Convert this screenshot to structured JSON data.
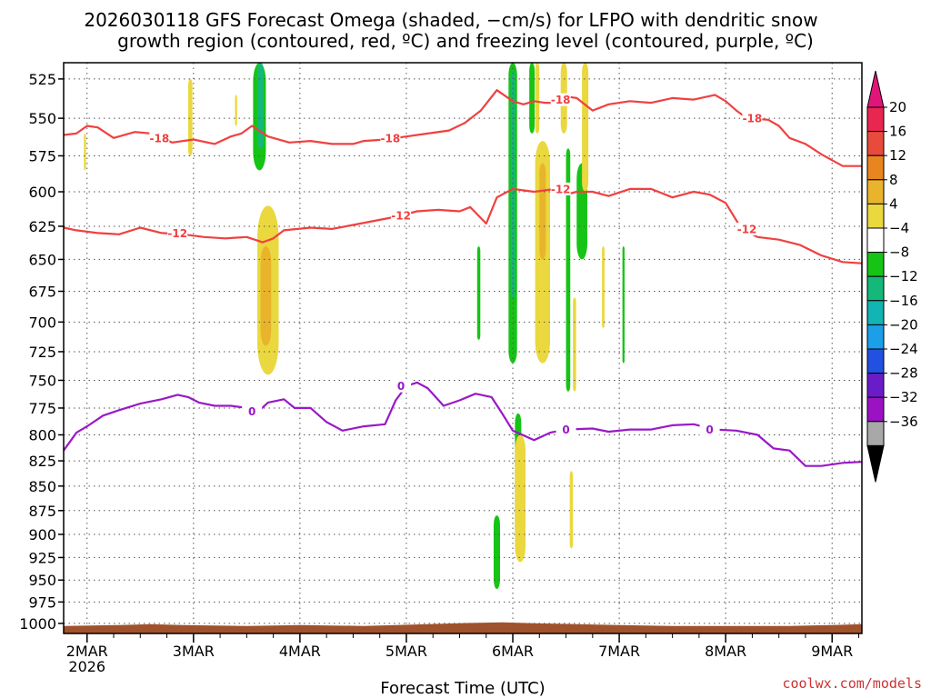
{
  "chart_data": {
    "type": "time-height cross section",
    "title_line1": "2026030118 GFS Forecast Omega (shaded, −cm/s) for LFPO with dendritic snow",
    "title_line2": "growth region (contoured, red, ºC) and freezing level (contoured, purple, ºC)",
    "xlabel": "Forecast Time (UTC)",
    "credit": "coolwx.com/models",
    "x_ticks": [
      {
        "day": 0,
        "label": "2MAR",
        "sub": "2026"
      },
      {
        "day": 1,
        "label": "3MAR"
      },
      {
        "day": 2,
        "label": "4MAR"
      },
      {
        "day": 3,
        "label": "5MAR"
      },
      {
        "day": 4,
        "label": "6MAR"
      },
      {
        "day": 5,
        "label": "7MAR"
      },
      {
        "day": 6,
        "label": "8MAR"
      },
      {
        "day": 7,
        "label": "9MAR"
      }
    ],
    "xlim": [
      -0.22,
      7.28
    ],
    "y_ticks": [
      525,
      550,
      575,
      600,
      625,
      650,
      675,
      700,
      725,
      750,
      775,
      800,
      825,
      850,
      875,
      900,
      925,
      950,
      975,
      1000
    ],
    "ylim": [
      515,
      1012
    ],
    "ylog": true,
    "grid": true,
    "colorbar": {
      "labels": [
        "20",
        "16",
        "12",
        "8",
        "4",
        "−4",
        "−8",
        "−12",
        "−16",
        "−20",
        "−24",
        "−28",
        "−32",
        "−36"
      ],
      "colors": [
        "#e8264f",
        "#e84a3c",
        "#e8851e",
        "#e8b42c",
        "#ead83e",
        "#ffffff",
        "#16c416",
        "#14b87a",
        "#12b4b4",
        "#1a9fe8",
        "#2250e0",
        "#6a1cc8",
        "#9b11c4",
        "#a8a8a8"
      ],
      "top_color": "#e0157a",
      "bottom_color": "#000000"
    },
    "contours_dgz": [
      {
        "label": "-18",
        "color": "#f04040",
        "points": [
          [
            -0.22,
            561
          ],
          [
            -0.1,
            560
          ],
          [
            0.0,
            555
          ],
          [
            0.1,
            556
          ],
          [
            0.25,
            563
          ],
          [
            0.45,
            559
          ],
          [
            0.6,
            560
          ],
          [
            0.8,
            566
          ],
          [
            1.0,
            564
          ],
          [
            1.2,
            567
          ],
          [
            1.35,
            562
          ],
          [
            1.45,
            560
          ],
          [
            1.55,
            555
          ],
          [
            1.7,
            562
          ],
          [
            1.9,
            566
          ],
          [
            2.1,
            565
          ],
          [
            2.3,
            567
          ],
          [
            2.5,
            567
          ],
          [
            2.6,
            565
          ],
          [
            2.8,
            564
          ],
          [
            3.0,
            562
          ],
          [
            3.2,
            560
          ],
          [
            3.4,
            558
          ],
          [
            3.55,
            553
          ],
          [
            3.7,
            545
          ],
          [
            3.85,
            532
          ],
          [
            4.0,
            539
          ],
          [
            4.1,
            541
          ],
          [
            4.2,
            539
          ],
          [
            4.3,
            540
          ],
          [
            4.4,
            540
          ],
          [
            4.5,
            536
          ],
          [
            4.6,
            537
          ],
          [
            4.75,
            545
          ],
          [
            4.9,
            541
          ],
          [
            5.1,
            539
          ],
          [
            5.3,
            540
          ],
          [
            5.5,
            537
          ],
          [
            5.7,
            538
          ],
          [
            5.9,
            535
          ],
          [
            6.0,
            539
          ],
          [
            6.1,
            545
          ],
          [
            6.2,
            550
          ],
          [
            6.4,
            551
          ],
          [
            6.5,
            555
          ],
          [
            6.6,
            563
          ],
          [
            6.75,
            567
          ],
          [
            6.9,
            574
          ],
          [
            7.1,
            582
          ],
          [
            7.28,
            582
          ]
        ]
      },
      {
        "label": "-12",
        "color": "#f04040",
        "points": [
          [
            -0.22,
            626
          ],
          [
            -0.1,
            628
          ],
          [
            0.1,
            630
          ],
          [
            0.3,
            631
          ],
          [
            0.5,
            626
          ],
          [
            0.7,
            630
          ],
          [
            0.9,
            631
          ],
          [
            1.1,
            633
          ],
          [
            1.3,
            634
          ],
          [
            1.5,
            633
          ],
          [
            1.65,
            637
          ],
          [
            1.75,
            634
          ],
          [
            1.85,
            628
          ],
          [
            2.1,
            626
          ],
          [
            2.3,
            627
          ],
          [
            2.5,
            624
          ],
          [
            2.7,
            621
          ],
          [
            2.9,
            618
          ],
          [
            3.1,
            614
          ],
          [
            3.3,
            613
          ],
          [
            3.5,
            614
          ],
          [
            3.6,
            611
          ],
          [
            3.75,
            623
          ],
          [
            3.85,
            604
          ],
          [
            4.0,
            598
          ],
          [
            4.2,
            600
          ],
          [
            4.4,
            598
          ],
          [
            4.5,
            602
          ],
          [
            4.6,
            600
          ],
          [
            4.75,
            600
          ],
          [
            4.9,
            603
          ],
          [
            5.1,
            598
          ],
          [
            5.3,
            598
          ],
          [
            5.5,
            604
          ],
          [
            5.7,
            600
          ],
          [
            5.85,
            602
          ],
          [
            6.0,
            608
          ],
          [
            6.15,
            627
          ],
          [
            6.3,
            633
          ],
          [
            6.5,
            635
          ],
          [
            6.7,
            639
          ],
          [
            6.9,
            647
          ],
          [
            7.1,
            652
          ],
          [
            7.28,
            653
          ]
        ]
      },
      {
        "label": "0",
        "color": "#9a18c8",
        "points": [
          [
            -0.22,
            815
          ],
          [
            -0.15,
            805
          ],
          [
            -0.1,
            798
          ],
          [
            0.0,
            792
          ],
          [
            0.15,
            782
          ],
          [
            0.3,
            777
          ],
          [
            0.5,
            771
          ],
          [
            0.7,
            767
          ],
          [
            0.85,
            763
          ],
          [
            0.95,
            765
          ],
          [
            1.05,
            770
          ],
          [
            1.2,
            773
          ],
          [
            1.35,
            773
          ],
          [
            1.5,
            775
          ],
          [
            1.6,
            779
          ],
          [
            1.7,
            770
          ],
          [
            1.85,
            767
          ],
          [
            1.95,
            775
          ],
          [
            2.1,
            775
          ],
          [
            2.25,
            788
          ],
          [
            2.4,
            796
          ],
          [
            2.6,
            792
          ],
          [
            2.8,
            790
          ],
          [
            2.9,
            768
          ],
          [
            3.0,
            755
          ],
          [
            3.1,
            752
          ],
          [
            3.2,
            757
          ],
          [
            3.35,
            773
          ],
          [
            3.5,
            768
          ],
          [
            3.65,
            762
          ],
          [
            3.8,
            765
          ],
          [
            3.9,
            780
          ],
          [
            4.0,
            796
          ],
          [
            4.2,
            805
          ],
          [
            4.35,
            798
          ],
          [
            4.5,
            795
          ],
          [
            4.75,
            794
          ],
          [
            4.9,
            797
          ],
          [
            5.1,
            795
          ],
          [
            5.3,
            795
          ],
          [
            5.5,
            791
          ],
          [
            5.7,
            790
          ],
          [
            5.9,
            795
          ],
          [
            6.1,
            796
          ],
          [
            6.3,
            800
          ],
          [
            6.45,
            813
          ],
          [
            6.6,
            815
          ],
          [
            6.75,
            830
          ],
          [
            6.9,
            830
          ],
          [
            7.1,
            827
          ],
          [
            7.28,
            826
          ]
        ]
      }
    ],
    "contour_label_positions": [
      {
        "label": "-18",
        "day": 0.68,
        "p": 563,
        "color": "#f04040"
      },
      {
        "label": "-18",
        "day": 2.85,
        "p": 563,
        "color": "#f04040"
      },
      {
        "label": "-18",
        "day": 4.45,
        "p": 538,
        "color": "#f04040"
      },
      {
        "label": "-18",
        "day": 6.25,
        "p": 550,
        "color": "#f04040"
      },
      {
        "label": "-12",
        "day": 0.85,
        "p": 630,
        "color": "#f04040"
      },
      {
        "label": "-12",
        "day": 2.95,
        "p": 617,
        "color": "#f04040"
      },
      {
        "label": "-12",
        "day": 4.45,
        "p": 598,
        "color": "#f04040"
      },
      {
        "label": "-12",
        "day": 6.2,
        "p": 627,
        "color": "#f04040"
      },
      {
        "label": "0",
        "day": 1.55,
        "p": 778,
        "color": "#9a18c8"
      },
      {
        "label": "0",
        "day": 2.95,
        "p": 755,
        "color": "#9a18c8"
      },
      {
        "label": "0",
        "day": 4.5,
        "p": 795,
        "color": "#9a18c8"
      },
      {
        "label": "0",
        "day": 5.85,
        "p": 795,
        "color": "#9a18c8"
      }
    ],
    "shaded_features": [
      {
        "color": "#16c416",
        "day_center": 1.62,
        "half_width": 0.06,
        "p_top": 515,
        "p_bottom": 585
      },
      {
        "color": "#14b87a",
        "day_center": 1.63,
        "half_width": 0.03,
        "p_top": 515,
        "p_bottom": 570
      },
      {
        "color": "#ead83e",
        "day_center": 1.7,
        "half_width": 0.1,
        "p_top": 610,
        "p_bottom": 745
      },
      {
        "color": "#e8b42c",
        "day_center": 1.68,
        "half_width": 0.05,
        "p_top": 640,
        "p_bottom": 720
      },
      {
        "color": "#ead83e",
        "day_center": 0.97,
        "half_width": 0.02,
        "p_top": 525,
        "p_bottom": 575
      },
      {
        "color": "#ead83e",
        "day_center": 1.4,
        "half_width": 0.01,
        "p_top": 535,
        "p_bottom": 555
      },
      {
        "color": "#ead83e",
        "day_center": -0.02,
        "half_width": 0.01,
        "p_top": 560,
        "p_bottom": 585
      },
      {
        "color": "#16c416",
        "day_center": 4.0,
        "half_width": 0.04,
        "p_top": 515,
        "p_bottom": 735
      },
      {
        "color": "#14b87a",
        "day_center": 4.0,
        "half_width": 0.02,
        "p_top": 520,
        "p_bottom": 680
      },
      {
        "color": "#16c416",
        "day_center": 3.68,
        "half_width": 0.015,
        "p_top": 640,
        "p_bottom": 715
      },
      {
        "color": "#16c416",
        "day_center": 4.18,
        "half_width": 0.025,
        "p_top": 515,
        "p_bottom": 560
      },
      {
        "color": "#ead83e",
        "day_center": 4.28,
        "half_width": 0.07,
        "p_top": 565,
        "p_bottom": 735
      },
      {
        "color": "#e8b42c",
        "day_center": 4.28,
        "half_width": 0.03,
        "p_top": 580,
        "p_bottom": 650
      },
      {
        "color": "#ead83e",
        "day_center": 4.23,
        "half_width": 0.02,
        "p_top": 515,
        "p_bottom": 560
      },
      {
        "color": "#ead83e",
        "day_center": 4.48,
        "half_width": 0.03,
        "p_top": 515,
        "p_bottom": 560
      },
      {
        "color": "#16c416",
        "day_center": 4.52,
        "half_width": 0.02,
        "p_top": 570,
        "p_bottom": 760
      },
      {
        "color": "#16c416",
        "day_center": 4.65,
        "half_width": 0.05,
        "p_top": 580,
        "p_bottom": 650
      },
      {
        "color": "#ead83e",
        "day_center": 4.68,
        "half_width": 0.03,
        "p_top": 515,
        "p_bottom": 600
      },
      {
        "color": "#ead83e",
        "day_center": 4.58,
        "half_width": 0.015,
        "p_top": 680,
        "p_bottom": 760
      },
      {
        "color": "#ead83e",
        "day_center": 4.85,
        "half_width": 0.012,
        "p_top": 640,
        "p_bottom": 705
      },
      {
        "color": "#16c416",
        "day_center": 5.04,
        "half_width": 0.01,
        "p_top": 640,
        "p_bottom": 735
      },
      {
        "color": "#16c416",
        "day_center": 3.85,
        "half_width": 0.03,
        "p_top": 880,
        "p_bottom": 960
      },
      {
        "color": "#16c416",
        "day_center": 4.05,
        "half_width": 0.03,
        "p_top": 780,
        "p_bottom": 905
      },
      {
        "color": "#ead83e",
        "day_center": 4.07,
        "half_width": 0.05,
        "p_top": 800,
        "p_bottom": 930
      },
      {
        "color": "#ead83e",
        "day_center": 4.55,
        "half_width": 0.015,
        "p_top": 835,
        "p_bottom": 915
      }
    ],
    "terrain": {
      "color": "#a0522d",
      "surface_p": 1003,
      "bottom_p": 1012
    }
  }
}
